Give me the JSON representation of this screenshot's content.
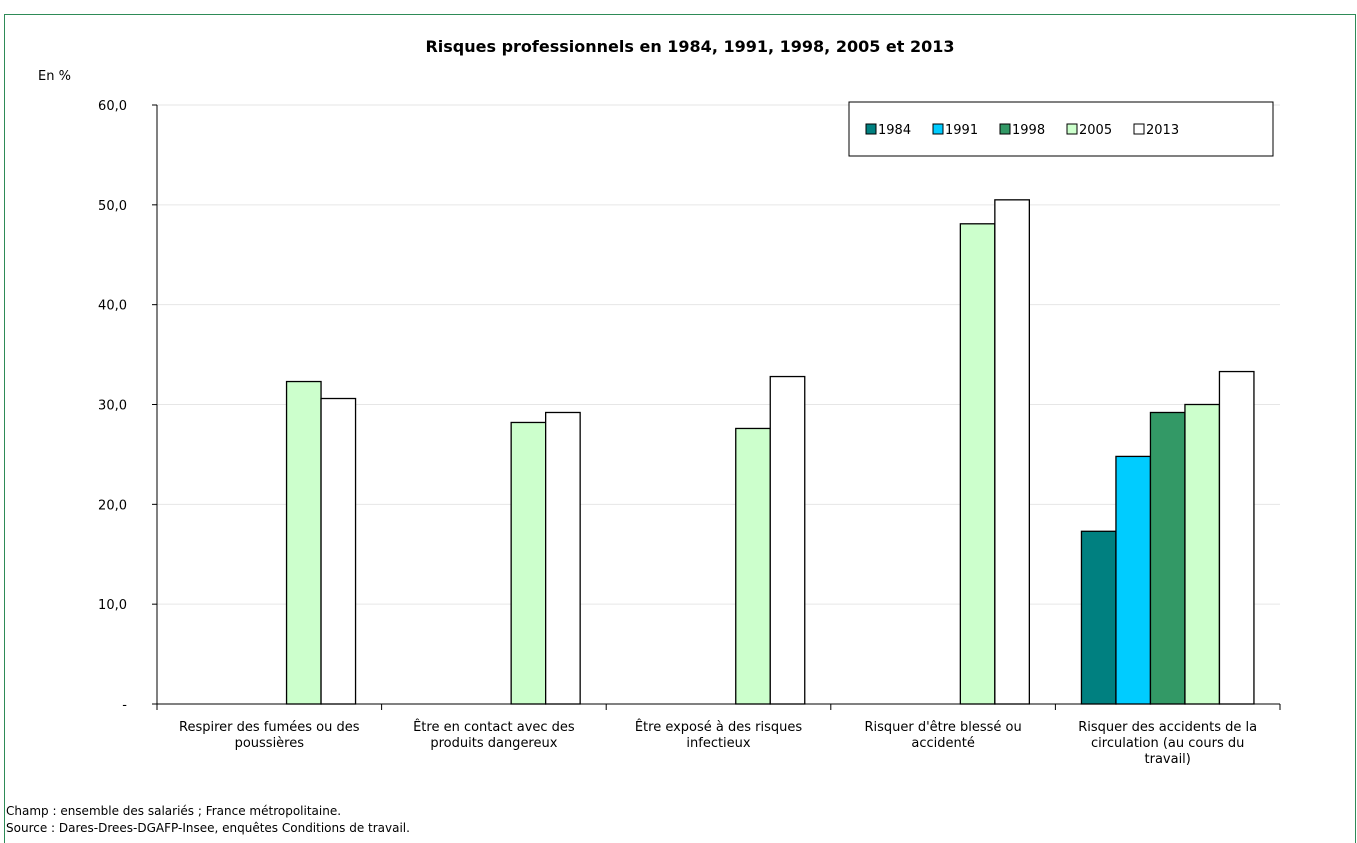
{
  "chart_data": {
    "type": "bar",
    "title": "Risques professionnels en 1984, 1991, 1998, 2005 et 2013",
    "ylabel": "En %",
    "xlabel": "",
    "ylim": [
      0,
      60
    ],
    "yticks": [
      {
        "value": 0,
        "label": "-"
      },
      {
        "value": 10,
        "label": "10,0"
      },
      {
        "value": 20,
        "label": "20,0"
      },
      {
        "value": 30,
        "label": "30,0"
      },
      {
        "value": 40,
        "label": "40,0"
      },
      {
        "value": 50,
        "label": "50,0"
      },
      {
        "value": 60,
        "label": "60,0"
      }
    ],
    "grid": true,
    "legend_position": "top-right",
    "categories": [
      [
        "Respirer des fumées ou des",
        "poussières"
      ],
      [
        "Être en contact avec des",
        "produits dangereux"
      ],
      [
        "Être exposé à des risques",
        "infectieux"
      ],
      [
        "Risquer d'être blessé ou",
        "accidenté"
      ],
      [
        "Risquer des accidents de la",
        "circulation (au cours du",
        "travail)"
      ]
    ],
    "series": [
      {
        "name": "1984",
        "color": "#008080",
        "values": [
          null,
          null,
          null,
          null,
          17.3
        ]
      },
      {
        "name": "1991",
        "color": "#00ccff",
        "values": [
          null,
          null,
          null,
          null,
          24.8
        ]
      },
      {
        "name": "1998",
        "color": "#339966",
        "values": [
          null,
          null,
          null,
          null,
          29.2
        ]
      },
      {
        "name": "2005",
        "color": "#ccffcc",
        "values": [
          32.3,
          28.2,
          27.6,
          48.1,
          30.0
        ]
      },
      {
        "name": "2013",
        "color": "#ffffff",
        "values": [
          30.6,
          29.2,
          32.8,
          50.5,
          33.3
        ]
      }
    ]
  },
  "notes": {
    "champ": "Champ : ensemble des salariés ; France métropolitaine.",
    "source": "Source : Dares-Drees-DGAFP-Insee, enquêtes Conditions de travail."
  }
}
